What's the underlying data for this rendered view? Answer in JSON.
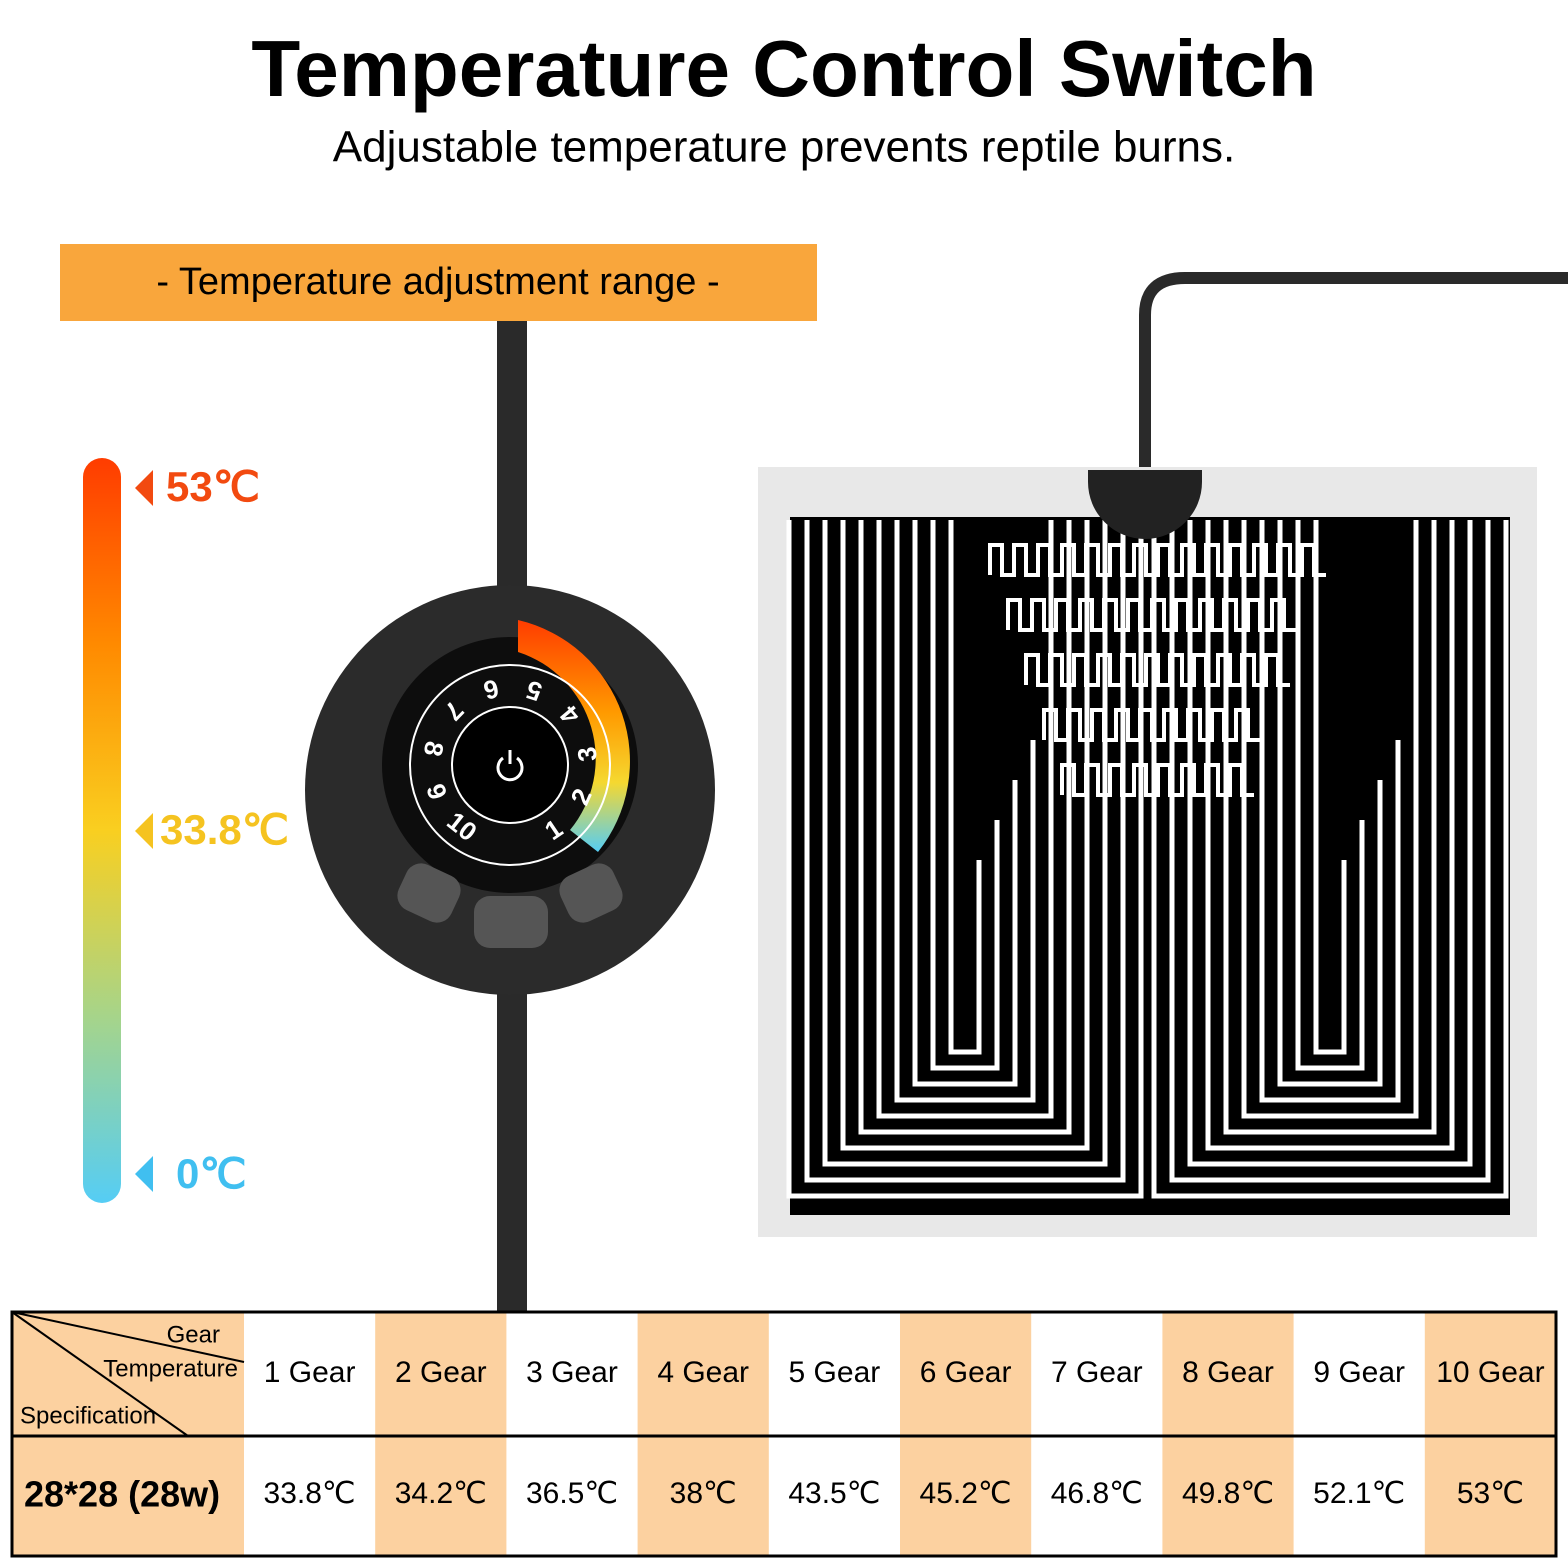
{
  "header": {
    "title": "Temperature Control Switch",
    "subtitle": "Adjustable temperature prevents reptile burns."
  },
  "range": {
    "label": "- Temperature adjustment range -",
    "max": "53℃",
    "mid": "33.8℃",
    "min": "0℃"
  },
  "dial": {
    "numbers": [
      "1",
      "2",
      "3",
      "4",
      "5",
      "6",
      "7",
      "8",
      "9",
      "10"
    ]
  },
  "table": {
    "corner": {
      "top": "Gear",
      "middle": "Temperature",
      "bottom": "Specification"
    },
    "columns": [
      "1 Gear",
      "2 Gear",
      "3 Gear",
      "4 Gear",
      "5 Gear",
      "6 Gear",
      "7 Gear",
      "8 Gear",
      "9 Gear",
      "10 Gear"
    ],
    "rows": [
      {
        "label": "28*28 (28w)",
        "cells": [
          "33.8℃",
          "34.2℃",
          "36.5℃",
          "38℃",
          "43.5℃",
          "45.2℃",
          "46.8℃",
          "49.8℃",
          "52.1℃",
          "53℃"
        ]
      }
    ]
  }
}
